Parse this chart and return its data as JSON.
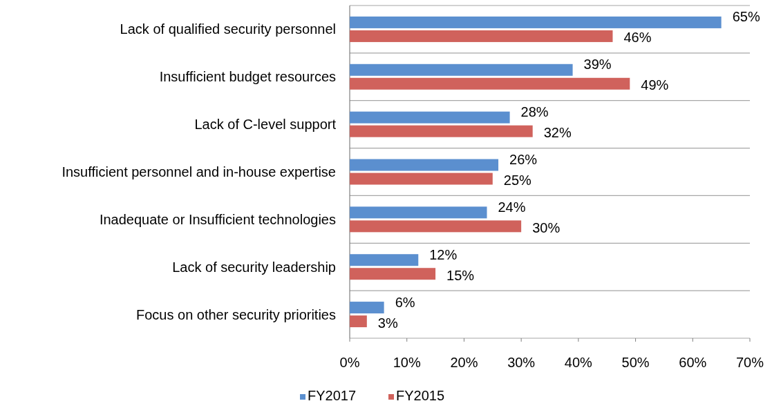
{
  "chart_data": {
    "type": "bar",
    "orientation": "horizontal",
    "categories": [
      "Lack of qualified security personnel",
      "Insufficient budget resources",
      "Lack of C-level support",
      "Insufficient personnel and in-house expertise",
      "Inadequate or Insufficient technologies",
      "Lack of security leadership",
      "Focus on other security priorities"
    ],
    "series": [
      {
        "name": "FY2017",
        "color": "#5b8fcf",
        "values": [
          65,
          39,
          28,
          26,
          24,
          12,
          6
        ],
        "value_labels": [
          "65%",
          "39%",
          "28%",
          "26%",
          "24%",
          "12%",
          "6%"
        ]
      },
      {
        "name": "FY2015",
        "color": "#d0625c",
        "values": [
          46,
          49,
          32,
          25,
          30,
          15,
          3
        ],
        "value_labels": [
          "46%",
          "49%",
          "32%",
          "25%",
          "30%",
          "15%",
          "3%"
        ]
      }
    ],
    "xlim": [
      0,
      70
    ],
    "xticks": [
      {
        "value": 0,
        "label": "0%"
      },
      {
        "value": 10,
        "label": "10%"
      },
      {
        "value": 20,
        "label": "20%"
      },
      {
        "value": 30,
        "label": "30%"
      },
      {
        "value": 40,
        "label": "40%"
      },
      {
        "value": 50,
        "label": "50%"
      },
      {
        "value": 60,
        "label": "60%"
      },
      {
        "value": 70,
        "label": "70%"
      }
    ],
    "grid": "y",
    "legend": "bottom"
  }
}
